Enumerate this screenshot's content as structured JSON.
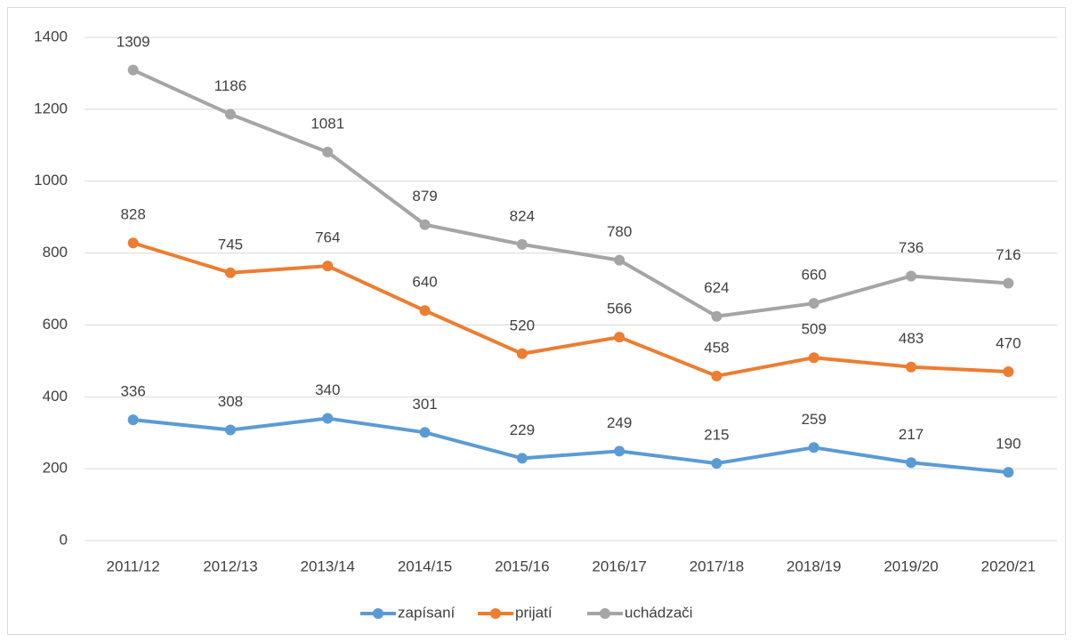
{
  "chart_data": {
    "type": "line",
    "categories": [
      "2011/12",
      "2012/13",
      "2013/14",
      "2014/15",
      "2015/16",
      "2016/17",
      "2017/18",
      "2018/19",
      "2019/20",
      "2020/21"
    ],
    "series": [
      {
        "name": "zapísaní",
        "color": "#5b9bd5",
        "values": [
          336,
          308,
          340,
          301,
          229,
          249,
          215,
          259,
          217,
          190
        ]
      },
      {
        "name": "prijatí",
        "color": "#ed7d31",
        "values": [
          828,
          745,
          764,
          640,
          520,
          566,
          458,
          509,
          483,
          470
        ]
      },
      {
        "name": "uchádzači",
        "color": "#a5a5a5",
        "values": [
          1309,
          1186,
          1081,
          879,
          824,
          780,
          624,
          660,
          736,
          716
        ]
      }
    ],
    "ylim": [
      0,
      1400
    ],
    "yticks": [
      0,
      200,
      400,
      600,
      800,
      1000,
      1200,
      1400
    ],
    "grid": true,
    "legend": "bottom",
    "data_labels": true
  }
}
